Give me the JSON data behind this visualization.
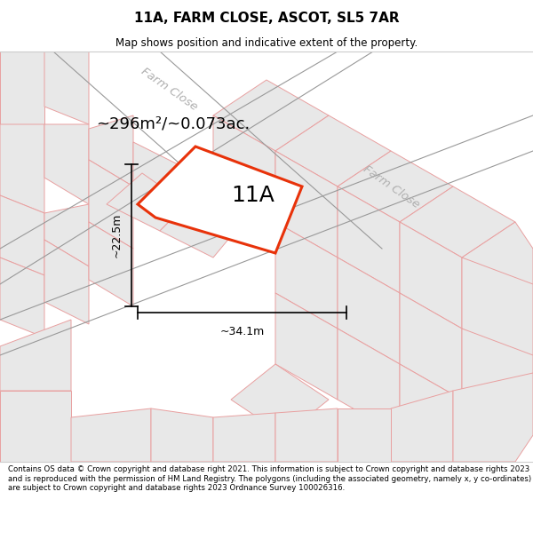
{
  "title": "11A, FARM CLOSE, ASCOT, SL5 7AR",
  "subtitle": "Map shows position and indicative extent of the property.",
  "area_text": "~296m²/~0.073ac.",
  "label_11a": "11A",
  "dim_width": "~34.1m",
  "dim_height": "~22.5m",
  "road_label_upper": "Farm Close",
  "road_label_lower": "Farm Close",
  "footer": "Contains OS data © Crown copyright and database right 2021. This information is subject to Crown copyright and database rights 2023 and is reproduced with the permission of HM Land Registry. The polygons (including the associated geometry, namely x, y co-ordinates) are subject to Crown copyright and database rights 2023 Ordnance Survey 100026316.",
  "bg_color": "#ffffff",
  "map_bg": "#ffffff",
  "plot_fill": "#ffffff",
  "plot_edge": "#e8320a",
  "other_fill": "#e8e8e8",
  "other_edge": "#e8a0a0",
  "road_label_color": "#b0b0b0",
  "dim_color": "#000000",
  "text_color": "#000000",
  "figsize": [
    6.0,
    6.25
  ],
  "dpi": 100
}
